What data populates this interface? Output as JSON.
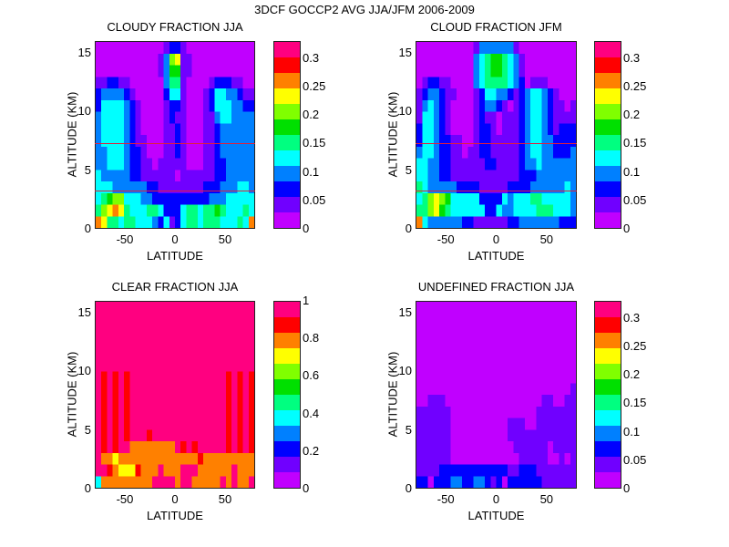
{
  "figure": {
    "title": "3DCF GOCCP2 AVG JJA/JFM 2006-2009"
  },
  "colormap": [
    "#c000ff",
    "#7000ff",
    "#0000ff",
    "#0080ff",
    "#00ffff",
    "#00ff80",
    "#00e000",
    "#80ff00",
    "#ffff00",
    "#ff8000",
    "#ff0000",
    "#ff0080"
  ],
  "chart_data": [
    {
      "type": "heatmap",
      "title": "CLOUDY FRACTION JJA",
      "xlabel": "LATITUDE",
      "ylabel": "ALTITUDE (KM)",
      "xlim": [
        -80,
        80
      ],
      "ylim": [
        0,
        16
      ],
      "xticks": [
        "-50",
        "0",
        "50"
      ],
      "yticks": [
        "0",
        "5",
        "10",
        "15"
      ],
      "colorbar": {
        "range": [
          0,
          0.33
        ],
        "ticks": [
          "0",
          "0.05",
          "0.1",
          "0.15",
          "0.2",
          "0.25",
          "0.3"
        ],
        "levels": 12
      },
      "hlines_km": [
        7.3,
        3.3
      ],
      "grid_note": "rows bottom(0km)->top(16km), cols -80->80; values are colormap level indices 0-11",
      "grid": [
        "9855455444324124554555444549",
        "5789854445542224554556544454",
        "4567744433222222222233344444",
        "4443333332211111111222333443",
        "4333332211111101111112233333",
        "3344432211011111000112233333",
        "3344432210001121000112333333",
        "3444432110001121000112333333",
        "3444432100001121000112333333",
        "3444432100001211000113443333",
        "2444432100001221000124443322",
        "2333321000002441000124433211",
        "1122110000003551000012221100",
        "0000000000013661100000000000",
        "0000000000013781100000000000",
        "0000000000001221000000000000"
      ]
    },
    {
      "type": "heatmap",
      "title": "CLOUD FRACTION JFM",
      "xlabel": "LATITUDE",
      "ylabel": "ALTITUDE (KM)",
      "xlim": [
        -80,
        80
      ],
      "ylim": [
        0,
        16
      ],
      "xticks": [
        "-50",
        "0",
        "50"
      ],
      "yticks": [
        "0",
        "5",
        "10",
        "15"
      ],
      "colorbar": {
        "range": [
          0,
          0.33
        ],
        "ticks": [
          "0",
          "0.05",
          "0.1",
          "0.15",
          "0.2",
          "0.25",
          "0.3"
        ],
        "levels": 12
      },
      "hlines_km": [
        7.3,
        3.3
      ],
      "grid": [
        "9433333322111111223333333222",
        "5578654444442243344445554443",
        "4578764444422224344455444443",
        "5433333222211111222233333343",
        "4433221111111111112223333333",
        "4433221111112211112334333333",
        "3443221101122111112344332223",
        "2443221100122111112344332222",
        "2443210000122101112344321222",
        "1443210000121101112344321111",
        "1343210000123321012344321101",
        "1233211000124433212344321000",
        "0122110000345555432011100000",
        "0000000000345665431000000000",
        "0000000000345665431000000000",
        "0000000000133333310000000000"
      ]
    },
    {
      "type": "heatmap",
      "title": "CLEAR FRACTION JJA",
      "xlabel": "LATITUDE",
      "ylabel": "ALTITUDE (KM)",
      "xlim": [
        -80,
        80
      ],
      "ylim": [
        0,
        16
      ],
      "xticks": [
        "-50",
        "0",
        "50"
      ],
      "yticks": [
        "0",
        "5",
        "10",
        "15"
      ],
      "colorbar": {
        "range": [
          0,
          1
        ],
        "ticks": [
          "0",
          "0.2",
          "0.4",
          "0.6",
          "0.8",
          "1"
        ],
        "levels": 12
      },
      "grid": [
        "4999999999111191199999191991",
        "1109888099919991119999991999",
        "1998999999999999990999999999",
        "1010119999999910101111101010",
        "1010101110111111111111101010",
        "1010101111111111111111101010",
        "1010101111111111111111101010",
        "1010101111111111111111101010",
        "1010101111111111111111101010",
        "1010101111111111111111101010",
        "1111111111111111111111111111",
        "1111111111111111111111111111",
        "1111111111111111111111111111",
        "1111111111111111111111111111",
        "1111111111111111111111111111",
        "1111111111111111111111111111"
      ]
    },
    {
      "type": "heatmap",
      "title": "UNDEFINED FRACTION JJA",
      "xlabel": "LATITUDE",
      "ylabel": "ALTITUDE (KM)",
      "xlim": [
        -80,
        80
      ],
      "ylim": [
        0,
        16
      ],
      "xticks": [
        "-50",
        "0",
        "50"
      ],
      "yticks": [
        "0",
        "5",
        "10",
        "15"
      ],
      "colorbar": {
        "range": [
          0,
          0.33
        ],
        "ticks": [
          "0",
          "0.05",
          "0.1",
          "0.15",
          "0.2",
          "0.25",
          "0.3"
        ],
        "levels": 12
      },
      "grid": [
        "2202223322332120222222111111",
        "1111222222222222112221111111",
        "1111110000000000001111100101",
        "1111110000000000011111101111",
        "1111110000000000111111111111",
        "1111110000000000111001111111",
        "1111110000000000000001111111",
        "0011100000000000000000110011",
        "0000000000000000000000000001",
        "0000000000000000000000000000",
        "0000000000000000000000000000",
        "0000000000000000000000000000",
        "0000000000000000000000000000",
        "0000000000000000000000000000",
        "0000000000000000000000000000",
        "0000000000000000000000000000"
      ]
    }
  ]
}
